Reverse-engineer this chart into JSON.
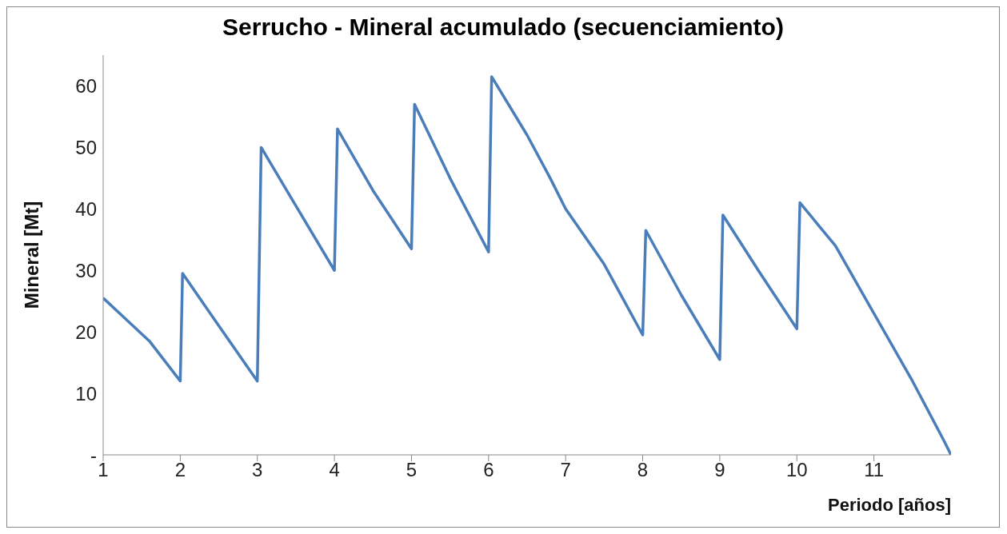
{
  "chart_data": {
    "type": "line",
    "title": "Serrucho - Mineral acumulado (secuenciamiento)",
    "xlabel": "Periodo [años]",
    "ylabel": "Mineral [Mt]",
    "x": [
      1,
      1.3,
      1.6,
      2,
      2.03,
      2.5,
      3,
      3.05,
      3.5,
      4,
      4.04,
      4.5,
      5,
      5.04,
      5.5,
      6,
      6.04,
      6.5,
      6.8,
      7,
      7.5,
      8,
      8.04,
      8.5,
      9,
      9.04,
      9.5,
      10,
      10.04,
      10.5,
      11,
      11.5,
      11.9,
      12
    ],
    "series": [
      {
        "color": "#4a7ebb",
        "values": [
          25.5,
          22,
          18.5,
          12,
          29.5,
          21,
          12,
          50,
          40.5,
          30,
          53,
          43,
          33.5,
          57,
          45,
          33,
          61.5,
          52,
          45,
          40,
          31,
          19.5,
          36.5,
          26,
          15.5,
          39,
          30,
          20.5,
          41,
          34,
          23,
          12,
          2.5,
          0
        ]
      }
    ],
    "xlim": [
      1,
      12
    ],
    "xticks": [
      1,
      2,
      3,
      4,
      5,
      6,
      7,
      8,
      9,
      10,
      11
    ],
    "ylim": [
      0,
      65
    ],
    "yticks": [
      {
        "value": 0,
        "label": "-"
      },
      10,
      20,
      30,
      40,
      50,
      60
    ],
    "grid": false,
    "legend": false,
    "marker": "none",
    "line_style": "solid"
  }
}
